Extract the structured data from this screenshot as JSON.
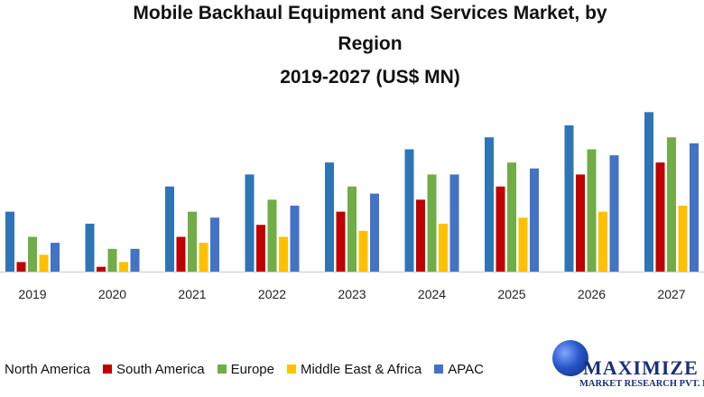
{
  "chart_data": {
    "type": "bar",
    "title_lines": [
      "Mobile Backhaul Equipment and Services Market, by",
      "Region",
      "2019-2027 (US$ MN)"
    ],
    "categories": [
      "2019",
      "2020",
      "2021",
      "2022",
      "2023",
      "2024",
      "2025",
      "2026",
      "2027"
    ],
    "series": [
      {
        "name": "North America",
        "color": "#2e75b6",
        "values": [
          50,
          40,
          71,
          81,
          91,
          102,
          112,
          122,
          133
        ]
      },
      {
        "name": "South America",
        "color": "#c00000",
        "values": [
          8,
          4,
          29,
          39,
          50,
          60,
          71,
          81,
          91
        ]
      },
      {
        "name": "Europe",
        "color": "#70ad47",
        "values": [
          29,
          19,
          50,
          60,
          71,
          81,
          91,
          102,
          112
        ]
      },
      {
        "name": "Middle East & Africa",
        "color": "#ffc000",
        "values": [
          14,
          8,
          24,
          29,
          34,
          40,
          45,
          50,
          55
        ]
      },
      {
        "name": "APAC",
        "color": "#4472c4",
        "values": [
          24,
          19,
          45,
          55,
          65,
          81,
          86,
          97,
          107
        ]
      }
    ],
    "ylim": [
      0,
      140
    ],
    "legend_position": "bottom"
  },
  "logo": {
    "name": "MAXIMIZE",
    "subtitle": "MARKET RESEARCH PVT. LTD."
  }
}
